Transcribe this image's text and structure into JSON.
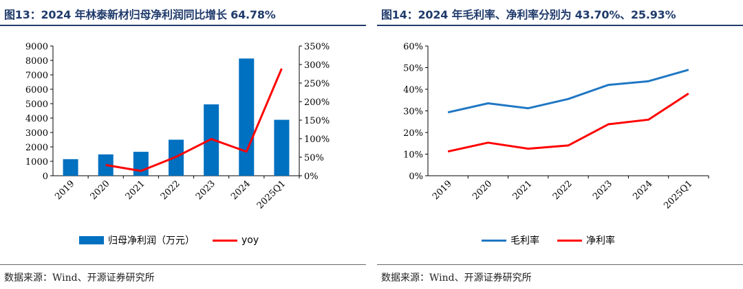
{
  "left": {
    "title": "图13：2024 年林泰新材归母净利润同比增长 64.78%",
    "source": "数据来源：Wind、开源证券研究所"
  },
  "right": {
    "title": "图14：2024 年毛利率、净利率分别为 43.70%、25.93%",
    "source": "数据来源：Wind、开源证券研究所"
  },
  "colors": {
    "title": "#1f3a6b",
    "bar": "#0070c0",
    "yoy": "#ff0000",
    "gross": "#1f77c4",
    "net": "#ff0000"
  },
  "chart_data": [
    {
      "type": "bar",
      "categories": [
        "2019",
        "2020",
        "2021",
        "2022",
        "2023",
        "2024",
        "2025Q1"
      ],
      "series": [
        {
          "name": "归母净利润（万元）",
          "type": "bar",
          "axis": "left",
          "values": [
            1150,
            1480,
            1660,
            2500,
            4950,
            8130,
            3880
          ]
        },
        {
          "name": "yoy",
          "type": "line",
          "axis": "right",
          "values": [
            null,
            0.29,
            0.13,
            0.51,
            0.99,
            0.65,
            2.89
          ]
        }
      ],
      "y_left": {
        "min": 0,
        "max": 9000,
        "ticks": [
          "0",
          "1000",
          "2000",
          "3000",
          "4000",
          "5000",
          "6000",
          "7000",
          "8000",
          "9000"
        ]
      },
      "y_right": {
        "min": 0,
        "max": 3.5,
        "ticks": [
          "0%",
          "50%",
          "100%",
          "150%",
          "200%",
          "250%",
          "300%",
          "350%"
        ]
      },
      "legend": "bottom"
    },
    {
      "type": "line",
      "categories": [
        "2019",
        "2020",
        "2021",
        "2022",
        "2023",
        "2024",
        "2025Q1"
      ],
      "series": [
        {
          "name": "毛利率",
          "values": [
            0.293,
            0.335,
            0.312,
            0.355,
            0.42,
            0.437,
            0.49
          ]
        },
        {
          "name": "净利率",
          "values": [
            0.112,
            0.153,
            0.125,
            0.14,
            0.238,
            0.2593,
            0.38
          ]
        }
      ],
      "y": {
        "min": 0,
        "max": 0.6,
        "ticks": [
          "0%",
          "10%",
          "20%",
          "30%",
          "40%",
          "50%",
          "60%"
        ]
      },
      "legend": "bottom"
    }
  ]
}
